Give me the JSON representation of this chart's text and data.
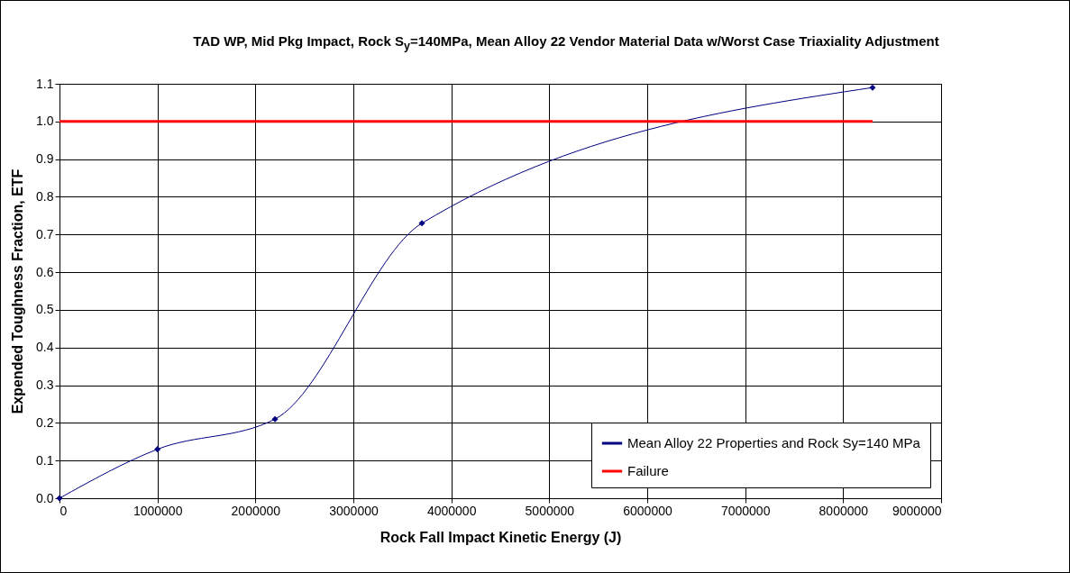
{
  "chart_data": {
    "type": "line",
    "title": "TAD WP, Mid Pkg Impact, Rock S$_{y}$=140MPa,  Mean Alloy 22 Vendor Material Data w/Worst Case Triaxiality Adjustment",
    "xlabel": "Rock Fall Impact Kinetic Energy (J)",
    "ylabel": "Expended Toughness Fraction, ETF",
    "x": [
      0,
      1000000,
      2200000,
      3700000,
      8300000
    ],
    "series": [
      {
        "name": "Mean Alloy 22 Properties and Rock Sy=140 MPa",
        "color": "#000080",
        "values": [
          0,
          0.13,
          0.21,
          0.73,
          1.09
        ]
      },
      {
        "name": "Failure",
        "color": "#ff0000",
        "x": [
          0,
          8300000
        ],
        "values": [
          1,
          1
        ],
        "marker": "none"
      }
    ],
    "xlim": [
      0,
      9000000
    ],
    "xticks": [
      0,
      1000000,
      2000000,
      3000000,
      4000000,
      5000000,
      6000000,
      7000000,
      8000000,
      9000000
    ],
    "ylim": [
      0,
      1.1
    ],
    "yticks": [
      {
        "value": 0,
        "label": "0.0"
      },
      0.1,
      0.2,
      0.3,
      0.4,
      0.5,
      0.6,
      0.7,
      0.8,
      0.9,
      {
        "value": 1,
        "label": "1.0"
      },
      1.1
    ],
    "grid": true,
    "legend": "bottom right",
    "marker": "diamond",
    "line_style": "solid"
  }
}
